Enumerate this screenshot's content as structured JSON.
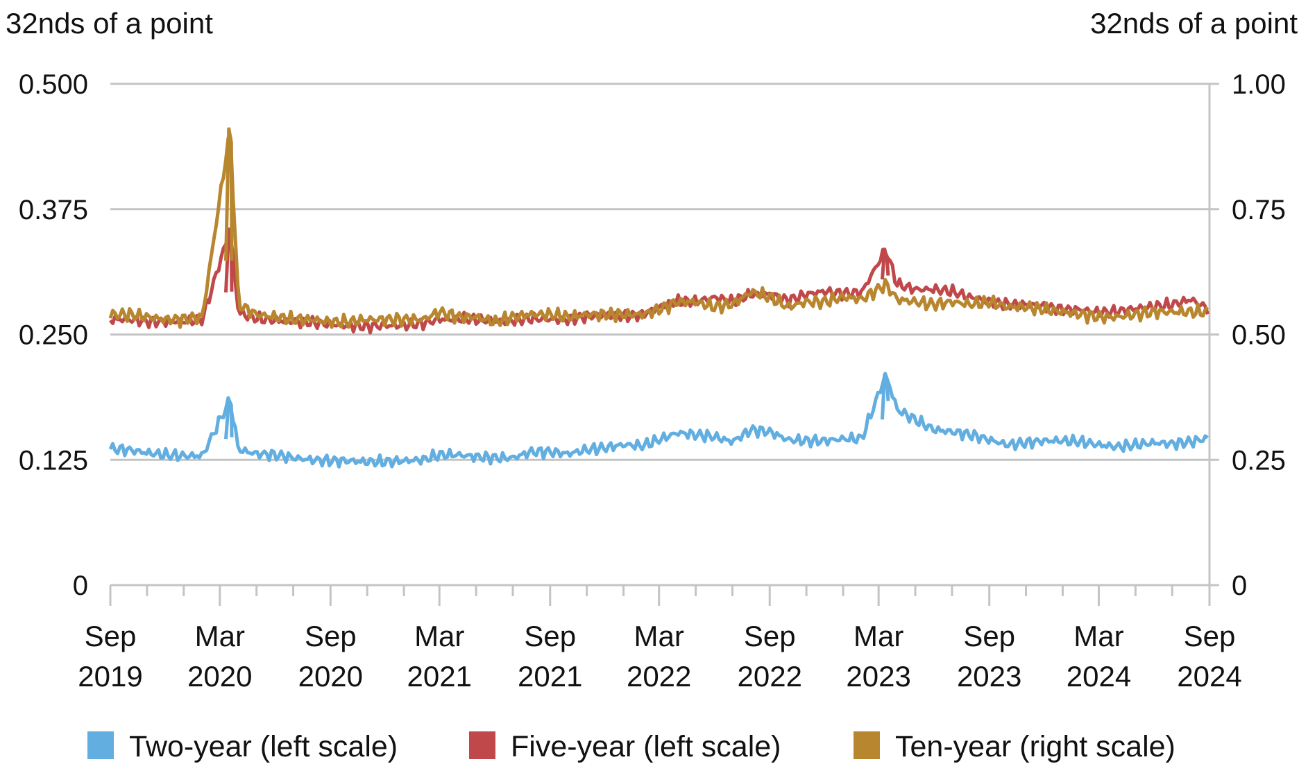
{
  "chart_data": {
    "type": "line",
    "title": "",
    "ylabel_left": "32nds of a point",
    "ylabel_right": "32nds of a point",
    "ylim_left": [
      0,
      0.5
    ],
    "ylim_right": [
      0,
      1.0
    ],
    "yticks_left": [
      "0",
      "0.125",
      "0.250",
      "0.375",
      "0.500"
    ],
    "yticks_right": [
      "0",
      "0.25",
      "0.50",
      "0.75",
      "1.00"
    ],
    "xlim": [
      "2019-09-01",
      "2024-09-01"
    ],
    "xticks": [
      {
        "date": "2019-09-01",
        "line1": "Sep",
        "line2": "2019"
      },
      {
        "date": "2020-03-01",
        "line1": "Mar",
        "line2": "2020"
      },
      {
        "date": "2020-09-01",
        "line1": "Sep",
        "line2": "2020"
      },
      {
        "date": "2021-03-01",
        "line1": "Mar",
        "line2": "2021"
      },
      {
        "date": "2021-09-01",
        "line1": "Sep",
        "line2": "2021"
      },
      {
        "date": "2022-03-01",
        "line1": "Mar",
        "line2": "2022"
      },
      {
        "date": "2022-09-01",
        "line1": "Sep",
        "line2": "2022"
      },
      {
        "date": "2023-03-01",
        "line1": "Mar",
        "line2": "2023"
      },
      {
        "date": "2023-09-01",
        "line1": "Sep",
        "line2": "2023"
      },
      {
        "date": "2024-03-01",
        "line1": "Mar",
        "line2": "2024"
      },
      {
        "date": "2024-09-01",
        "line1": "Sep",
        "line2": "2024"
      }
    ],
    "grid": true,
    "legend_position": "bottom",
    "x": [
      "2019-09-01",
      "2019-10-01",
      "2019-11-01",
      "2019-12-01",
      "2020-01-01",
      "2020-02-01",
      "2020-03-18",
      "2020-04-01",
      "2020-05-01",
      "2020-06-01",
      "2020-07-01",
      "2020-08-01",
      "2020-09-01",
      "2020-10-01",
      "2020-11-01",
      "2020-12-01",
      "2021-01-01",
      "2021-02-01",
      "2021-03-01",
      "2021-04-01",
      "2021-05-01",
      "2021-06-01",
      "2021-07-01",
      "2021-08-01",
      "2021-09-01",
      "2021-10-01",
      "2021-11-01",
      "2021-12-01",
      "2022-01-01",
      "2022-02-01",
      "2022-03-01",
      "2022-04-01",
      "2022-05-01",
      "2022-06-01",
      "2022-07-01",
      "2022-08-01",
      "2022-09-01",
      "2022-10-01",
      "2022-11-01",
      "2022-12-01",
      "2023-01-01",
      "2023-02-01",
      "2023-03-13",
      "2023-04-01",
      "2023-05-01",
      "2023-06-01",
      "2023-07-01",
      "2023-08-01",
      "2023-09-01",
      "2023-10-01",
      "2023-11-01",
      "2023-12-01",
      "2024-01-01",
      "2024-02-01",
      "2024-03-01",
      "2024-04-01",
      "2024-05-01",
      "2024-06-01",
      "2024-07-01",
      "2024-08-01",
      "2024-09-01"
    ],
    "series": [
      {
        "name": "Two-year (left scale)",
        "axis": "left",
        "color": "#62aee0",
        "values": [
          0.136,
          0.135,
          0.132,
          0.13,
          0.129,
          0.129,
          0.185,
          0.135,
          0.131,
          0.13,
          0.127,
          0.125,
          0.124,
          0.124,
          0.123,
          0.123,
          0.124,
          0.125,
          0.13,
          0.13,
          0.128,
          0.127,
          0.127,
          0.133,
          0.133,
          0.131,
          0.135,
          0.137,
          0.14,
          0.139,
          0.145,
          0.152,
          0.15,
          0.148,
          0.143,
          0.155,
          0.153,
          0.145,
          0.144,
          0.144,
          0.146,
          0.146,
          0.21,
          0.175,
          0.165,
          0.155,
          0.153,
          0.15,
          0.145,
          0.14,
          0.142,
          0.144,
          0.144,
          0.143,
          0.14,
          0.138,
          0.14,
          0.142,
          0.141,
          0.143,
          0.147
        ]
      },
      {
        "name": "Five-year (left scale)",
        "axis": "left",
        "color": "#c0474a",
        "values": [
          0.265,
          0.265,
          0.263,
          0.263,
          0.263,
          0.265,
          0.355,
          0.272,
          0.266,
          0.264,
          0.263,
          0.262,
          0.26,
          0.259,
          0.258,
          0.259,
          0.259,
          0.261,
          0.265,
          0.266,
          0.265,
          0.263,
          0.264,
          0.266,
          0.265,
          0.265,
          0.268,
          0.27,
          0.268,
          0.27,
          0.277,
          0.283,
          0.283,
          0.287,
          0.283,
          0.29,
          0.29,
          0.284,
          0.29,
          0.293,
          0.291,
          0.292,
          0.335,
          0.3,
          0.295,
          0.295,
          0.293,
          0.287,
          0.283,
          0.28,
          0.28,
          0.278,
          0.275,
          0.275,
          0.272,
          0.273,
          0.276,
          0.278,
          0.28,
          0.285,
          0.275
        ]
      },
      {
        "name": "Ten-year (right scale)",
        "axis": "right",
        "color": "#b8862e",
        "values": [
          0.54,
          0.54,
          0.535,
          0.53,
          0.53,
          0.535,
          0.91,
          0.56,
          0.54,
          0.535,
          0.53,
          0.53,
          0.525,
          0.525,
          0.53,
          0.53,
          0.53,
          0.53,
          0.545,
          0.535,
          0.535,
          0.525,
          0.535,
          0.54,
          0.54,
          0.535,
          0.54,
          0.54,
          0.54,
          0.54,
          0.55,
          0.565,
          0.565,
          0.555,
          0.56,
          0.585,
          0.575,
          0.555,
          0.565,
          0.565,
          0.575,
          0.57,
          0.6,
          0.57,
          0.565,
          0.56,
          0.565,
          0.56,
          0.565,
          0.555,
          0.555,
          0.55,
          0.545,
          0.54,
          0.535,
          0.535,
          0.54,
          0.545,
          0.545,
          0.545,
          0.545
        ]
      }
    ]
  }
}
